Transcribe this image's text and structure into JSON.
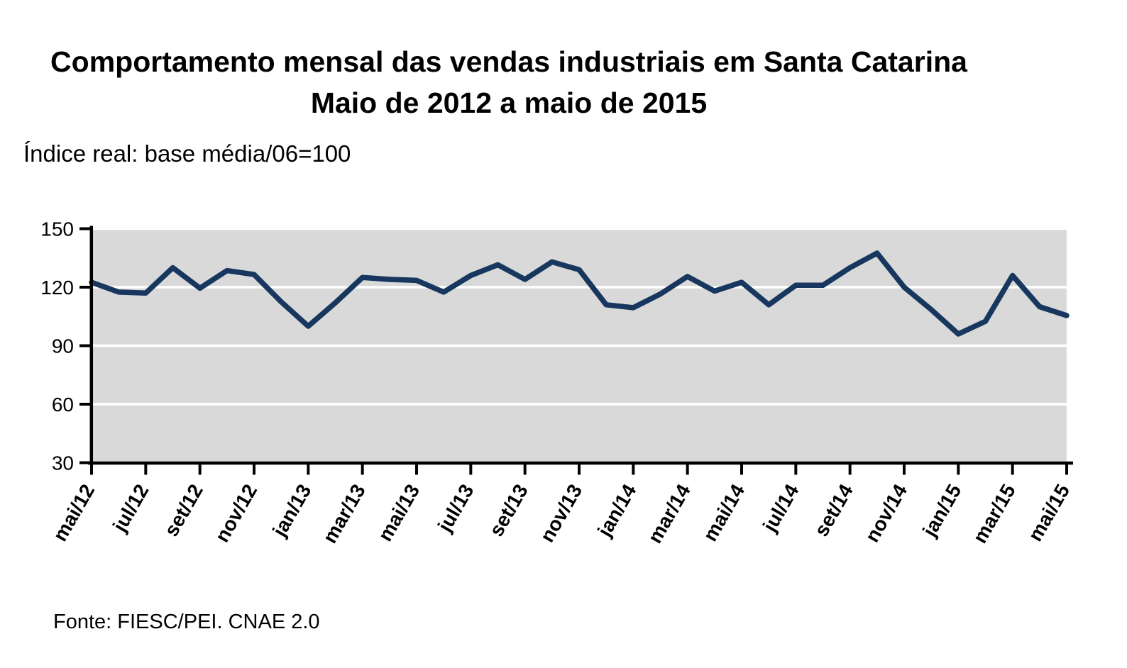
{
  "title": {
    "line1": "Comportamento mensal das vendas industriais em Santa Catarina",
    "line2": "Maio de 2012 a maio de 2015"
  },
  "subtitle": "Índice real: base média/06=100",
  "footer": {
    "source": "Fonte: FIESC/PEI. CNAE 2.0"
  },
  "chart_data": {
    "type": "line",
    "title": "Comportamento mensal das vendas industriais em Santa Catarina — Maio de 2012 a maio de 2015",
    "subtitle": "Índice real: base média/06=100",
    "source": "Fonte: FIESC/PEI. CNAE 2.0",
    "categories": [
      "mai/12",
      "jun/12",
      "jul/12",
      "ago/12",
      "set/12",
      "out/12",
      "nov/12",
      "dez/12",
      "jan/13",
      "fev/13",
      "mar/13",
      "abr/13",
      "mai/13",
      "jun/13",
      "jul/13",
      "ago/13",
      "set/13",
      "out/13",
      "nov/13",
      "dez/13",
      "jan/14",
      "fev/14",
      "mar/14",
      "abr/14",
      "mai/14",
      "jun/14",
      "jul/14",
      "ago/14",
      "set/14",
      "out/14",
      "nov/14",
      "dez/14",
      "jan/15",
      "fev/15",
      "mar/15",
      "abr/15",
      "mai/15"
    ],
    "values": [
      122.5,
      117.5,
      117,
      130,
      119.5,
      128.5,
      126.5,
      112.5,
      100,
      112,
      125,
      124,
      123.5,
      117.5,
      126,
      131.5,
      124,
      133,
      129,
      111,
      109.5,
      116.5,
      125.5,
      118,
      122.5,
      111,
      121,
      121,
      130,
      137.5,
      120,
      108.5,
      96,
      102.5,
      126,
      110,
      105.5
    ],
    "x_tick_labels": [
      "mai/12",
      "jul/12",
      "set/12",
      "nov/12",
      "jan/13",
      "mar/13",
      "mai/13",
      "jul/13",
      "set/13",
      "nov/13",
      "jan/14",
      "mar/14",
      "mai/14",
      "jul/14",
      "set/14",
      "nov/14",
      "jan/15",
      "mar/15",
      "mai/15"
    ],
    "x_tick_every": 2,
    "y_ticks": [
      150,
      120,
      90,
      60,
      30
    ],
    "ylim": [
      30,
      150
    ],
    "grid": "horizontal-white",
    "legend": "none",
    "line_color": "#17375E",
    "plot_bg_color": "#D9D9D9",
    "gridline_color": "#FFFFFF",
    "axis_color": "#000000"
  }
}
